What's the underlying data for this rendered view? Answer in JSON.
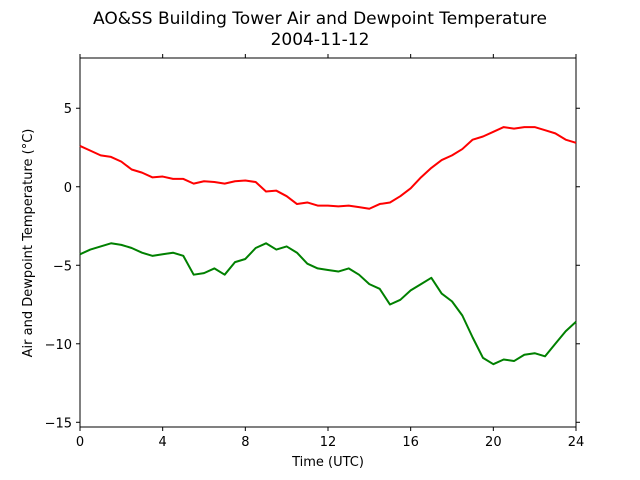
{
  "chart_data": {
    "type": "line",
    "title": "AO&SS Building Tower Air and Dewpoint Temperature",
    "subtitle": "2004-11-12",
    "xlabel": "Time (UTC)",
    "ylabel": "Air and Dewpoint Temperature (°C)",
    "xlim": [
      0,
      24
    ],
    "ylim": [
      -15.3,
      8.2
    ],
    "xticks": [
      0,
      4,
      8,
      12,
      16,
      20,
      24
    ],
    "yticks": [
      5,
      0,
      -5,
      -10,
      -15
    ],
    "grid": false,
    "legend": "none",
    "series": [
      {
        "color": "#ff0000",
        "x": [
          0,
          0.5,
          1,
          1.5,
          2,
          2.5,
          3,
          3.5,
          4,
          4.5,
          5,
          5.5,
          6,
          6.5,
          7,
          7.5,
          8,
          8.5,
          9,
          9.5,
          10,
          10.5,
          11,
          11.5,
          12,
          12.5,
          13,
          13.5,
          14,
          14.5,
          15,
          15.5,
          16,
          16.5,
          17,
          17.5,
          18,
          18.5,
          19,
          19.5,
          20,
          20.5,
          21,
          21.5,
          22,
          22.5,
          23,
          23.5,
          24
        ],
        "y": [
          2.6,
          2.3,
          2.0,
          1.9,
          1.6,
          1.1,
          0.9,
          0.6,
          0.65,
          0.5,
          0.5,
          0.2,
          0.35,
          0.3,
          0.2,
          0.35,
          0.4,
          0.3,
          -0.3,
          -0.25,
          -0.6,
          -1.1,
          -1.0,
          -1.2,
          -1.2,
          -1.25,
          -1.2,
          -1.3,
          -1.4,
          -1.1,
          -1.0,
          -0.6,
          -0.1,
          0.6,
          1.2,
          1.7,
          2.0,
          2.4,
          3.0,
          3.2,
          3.5,
          3.8,
          3.7,
          3.8,
          3.8,
          3.6,
          3.4,
          3.0,
          2.8
        ]
      },
      {
        "color": "#008000",
        "x": [
          0,
          0.5,
          1,
          1.5,
          2,
          2.5,
          3,
          3.5,
          4,
          4.5,
          5,
          5.5,
          6,
          6.5,
          7,
          7.5,
          8,
          8.5,
          9,
          9.5,
          10,
          10.5,
          11,
          11.5,
          12,
          12.5,
          13,
          13.5,
          14,
          14.5,
          15,
          15.5,
          16,
          16.5,
          17,
          17.5,
          18,
          18.5,
          19,
          19.5,
          20,
          20.5,
          21,
          21.5,
          22,
          22.5,
          23,
          23.5,
          24
        ],
        "y": [
          -4.3,
          -4.0,
          -3.8,
          -3.6,
          -3.7,
          -3.9,
          -4.2,
          -4.4,
          -4.3,
          -4.2,
          -4.4,
          -5.6,
          -5.5,
          -5.2,
          -5.6,
          -4.8,
          -4.6,
          -3.9,
          -3.6,
          -4.0,
          -3.8,
          -4.2,
          -4.9,
          -5.2,
          -5.3,
          -5.4,
          -5.2,
          -5.6,
          -6.2,
          -6.5,
          -7.5,
          -7.2,
          -6.6,
          -6.2,
          -5.8,
          -6.8,
          -7.3,
          -8.2,
          -9.6,
          -10.9,
          -11.3,
          -11.0,
          -11.1,
          -10.7,
          -10.6,
          -10.8,
          -10.0,
          -9.2,
          -8.6
        ]
      }
    ]
  }
}
